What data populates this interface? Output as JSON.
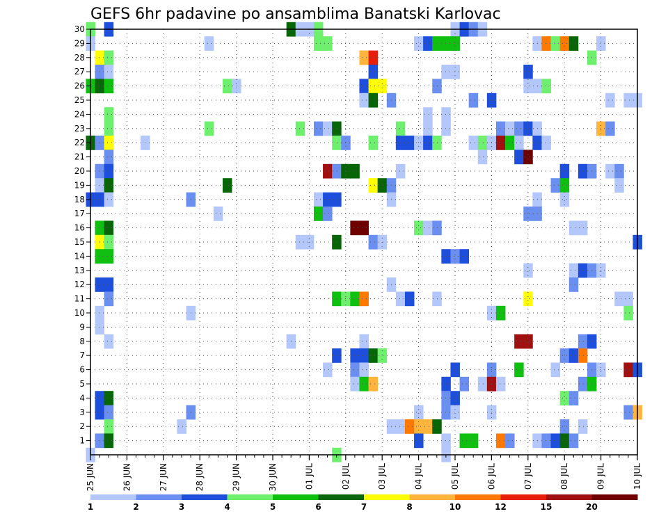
{
  "chart_data": {
    "type": "heatmap",
    "title": "GEFS 6hr padavine po ansamblima Banatski Karlovac",
    "x_tick_labels": [
      "25 JUN",
      "26 JUN",
      "27 JUN",
      "28 JUN",
      "29 JUN",
      "30 JUN",
      "01 JUL",
      "02 JUL",
      "03 JUL",
      "04 JUL",
      "05 JUL",
      "06 JUL",
      "07 JUL",
      "08 JUL",
      "09 JUL",
      "10 JUL"
    ],
    "y_tick_labels": [
      "1",
      "2",
      "3",
      "4",
      "5",
      "6",
      "7",
      "8",
      "9",
      "10",
      "11",
      "12",
      "13",
      "14",
      "15",
      "16",
      "17",
      "18",
      "19",
      "20",
      "21",
      "22",
      "23",
      "24",
      "25",
      "26",
      "27",
      "28",
      "29",
      "30"
    ],
    "x_steps_per_day": 4,
    "x_range_steps": [
      0,
      60
    ],
    "y_range_members": [
      0,
      30
    ],
    "grid": "dotted",
    "colorbar": {
      "placement": "bottom",
      "labels": [
        "1",
        "2",
        "3",
        "4",
        "5",
        "6",
        "7",
        "8",
        "10",
        "12",
        "15",
        "20"
      ],
      "colors": [
        "#b4c7fa",
        "#6b8ff0",
        "#1e4fdc",
        "#6ef06e",
        "#10c010",
        "#086608",
        "#ffff00",
        "#ffb43c",
        "#ff7800",
        "#e61e0a",
        "#a01010",
        "#6e0000"
      ]
    },
    "cells": [
      [
        30,
        0,
        4
      ],
      [
        30,
        2,
        3
      ],
      [
        30,
        22,
        6
      ],
      [
        30,
        23,
        1
      ],
      [
        30,
        24,
        1
      ],
      [
        30,
        25,
        4
      ],
      [
        30,
        40,
        1
      ],
      [
        30,
        41,
        3
      ],
      [
        30,
        42,
        2
      ],
      [
        30,
        43,
        1
      ],
      [
        29,
        0,
        1
      ],
      [
        29,
        13,
        1
      ],
      [
        29,
        25,
        4
      ],
      [
        29,
        26,
        4
      ],
      [
        29,
        36,
        1
      ],
      [
        29,
        37,
        3
      ],
      [
        29,
        38,
        5
      ],
      [
        29,
        39,
        5
      ],
      [
        29,
        40,
        5
      ],
      [
        29,
        49,
        1
      ],
      [
        29,
        50,
        9
      ],
      [
        29,
        51,
        4
      ],
      [
        29,
        52,
        9
      ],
      [
        29,
        53,
        6
      ],
      [
        29,
        56,
        1
      ],
      [
        28,
        1,
        7
      ],
      [
        28,
        2,
        4
      ],
      [
        28,
        30,
        8
      ],
      [
        28,
        31,
        10
      ],
      [
        28,
        55,
        4
      ],
      [
        27,
        1,
        2
      ],
      [
        27,
        2,
        1
      ],
      [
        27,
        31,
        3
      ],
      [
        27,
        39,
        1
      ],
      [
        27,
        40,
        1
      ],
      [
        27,
        48,
        3
      ],
      [
        26,
        0,
        5
      ],
      [
        26,
        1,
        6
      ],
      [
        26,
        2,
        5
      ],
      [
        26,
        15,
        4
      ],
      [
        26,
        16,
        1
      ],
      [
        26,
        30,
        3
      ],
      [
        26,
        31,
        7
      ],
      [
        26,
        32,
        7
      ],
      [
        26,
        38,
        2
      ],
      [
        26,
        48,
        1
      ],
      [
        26,
        49,
        1
      ],
      [
        26,
        50,
        4
      ],
      [
        25,
        30,
        1
      ],
      [
        25,
        31,
        6
      ],
      [
        25,
        33,
        2
      ],
      [
        25,
        42,
        2
      ],
      [
        25,
        44,
        3
      ],
      [
        25,
        57,
        1
      ],
      [
        25,
        59,
        1
      ],
      [
        25,
        60,
        1
      ],
      [
        24,
        2,
        4
      ],
      [
        24,
        37,
        1
      ],
      [
        24,
        39,
        1
      ],
      [
        23,
        2,
        4
      ],
      [
        23,
        13,
        4
      ],
      [
        23,
        23,
        4
      ],
      [
        23,
        25,
        2
      ],
      [
        23,
        26,
        1
      ],
      [
        23,
        27,
        6
      ],
      [
        23,
        34,
        4
      ],
      [
        23,
        37,
        1
      ],
      [
        23,
        39,
        1
      ],
      [
        23,
        45,
        2
      ],
      [
        23,
        46,
        1
      ],
      [
        23,
        47,
        2
      ],
      [
        23,
        48,
        3
      ],
      [
        23,
        49,
        1
      ],
      [
        23,
        56,
        8
      ],
      [
        23,
        57,
        2
      ],
      [
        22,
        0,
        6
      ],
      [
        22,
        1,
        2
      ],
      [
        22,
        2,
        7
      ],
      [
        22,
        6,
        1
      ],
      [
        22,
        27,
        4
      ],
      [
        22,
        28,
        2
      ],
      [
        22,
        31,
        4
      ],
      [
        22,
        34,
        3
      ],
      [
        22,
        35,
        3
      ],
      [
        22,
        36,
        1
      ],
      [
        22,
        37,
        3
      ],
      [
        22,
        38,
        4
      ],
      [
        22,
        42,
        1
      ],
      [
        22,
        43,
        4
      ],
      [
        22,
        44,
        1
      ],
      [
        22,
        45,
        11
      ],
      [
        22,
        46,
        5
      ],
      [
        22,
        47,
        1
      ],
      [
        22,
        49,
        3
      ],
      [
        22,
        50,
        1
      ],
      [
        21,
        2,
        2
      ],
      [
        21,
        43,
        1
      ],
      [
        21,
        47,
        3
      ],
      [
        21,
        48,
        12
      ],
      [
        20,
        1,
        2
      ],
      [
        20,
        2,
        3
      ],
      [
        20,
        26,
        11
      ],
      [
        20,
        27,
        2
      ],
      [
        20,
        28,
        6
      ],
      [
        20,
        29,
        6
      ],
      [
        20,
        34,
        1
      ],
      [
        20,
        52,
        3
      ],
      [
        20,
        54,
        3
      ],
      [
        20,
        55,
        2
      ],
      [
        20,
        57,
        1
      ],
      [
        20,
        58,
        2
      ],
      [
        19,
        1,
        1
      ],
      [
        19,
        2,
        6
      ],
      [
        19,
        15,
        6
      ],
      [
        19,
        31,
        7
      ],
      [
        19,
        32,
        6
      ],
      [
        19,
        33,
        2
      ],
      [
        19,
        51,
        2
      ],
      [
        19,
        52,
        5
      ],
      [
        19,
        58,
        1
      ],
      [
        18,
        0,
        3
      ],
      [
        18,
        1,
        3
      ],
      [
        18,
        2,
        1
      ],
      [
        18,
        11,
        2
      ],
      [
        18,
        25,
        1
      ],
      [
        18,
        26,
        3
      ],
      [
        18,
        27,
        3
      ],
      [
        18,
        33,
        1
      ],
      [
        18,
        49,
        1
      ],
      [
        18,
        52,
        1
      ],
      [
        17,
        14,
        1
      ],
      [
        17,
        25,
        5
      ],
      [
        17,
        26,
        2
      ],
      [
        17,
        48,
        2
      ],
      [
        17,
        49,
        2
      ],
      [
        16,
        1,
        5
      ],
      [
        16,
        2,
        6
      ],
      [
        16,
        29,
        12
      ],
      [
        16,
        30,
        12
      ],
      [
        16,
        36,
        4
      ],
      [
        16,
        37,
        1
      ],
      [
        16,
        38,
        2
      ],
      [
        16,
        53,
        1
      ],
      [
        16,
        54,
        1
      ],
      [
        15,
        1,
        7
      ],
      [
        15,
        2,
        4
      ],
      [
        15,
        23,
        1
      ],
      [
        15,
        24,
        1
      ],
      [
        15,
        27,
        6
      ],
      [
        15,
        31,
        2
      ],
      [
        15,
        32,
        1
      ],
      [
        15,
        60,
        3
      ],
      [
        14,
        1,
        5
      ],
      [
        14,
        2,
        5
      ],
      [
        14,
        39,
        3
      ],
      [
        14,
        40,
        2
      ],
      [
        14,
        41,
        3
      ],
      [
        13,
        48,
        1
      ],
      [
        13,
        53,
        1
      ],
      [
        13,
        54,
        3
      ],
      [
        13,
        55,
        2
      ],
      [
        13,
        56,
        1
      ],
      [
        12,
        1,
        3
      ],
      [
        12,
        2,
        3
      ],
      [
        12,
        33,
        1
      ],
      [
        12,
        53,
        2
      ],
      [
        11,
        2,
        2
      ],
      [
        11,
        27,
        5
      ],
      [
        11,
        28,
        4
      ],
      [
        11,
        29,
        5
      ],
      [
        11,
        30,
        9
      ],
      [
        11,
        34,
        1
      ],
      [
        11,
        35,
        3
      ],
      [
        11,
        38,
        1
      ],
      [
        11,
        48,
        7
      ],
      [
        11,
        58,
        1
      ],
      [
        11,
        59,
        1
      ],
      [
        10,
        1,
        1
      ],
      [
        10,
        11,
        1
      ],
      [
        10,
        44,
        1
      ],
      [
        10,
        45,
        5
      ],
      [
        10,
        59,
        4
      ],
      [
        9,
        1,
        1
      ],
      [
        8,
        2,
        1
      ],
      [
        8,
        22,
        1
      ],
      [
        8,
        30,
        1
      ],
      [
        8,
        47,
        11
      ],
      [
        8,
        48,
        11
      ],
      [
        8,
        54,
        2
      ],
      [
        8,
        55,
        3
      ],
      [
        7,
        27,
        3
      ],
      [
        7,
        29,
        3
      ],
      [
        7,
        30,
        3
      ],
      [
        7,
        31,
        6
      ],
      [
        7,
        32,
        4
      ],
      [
        7,
        52,
        2
      ],
      [
        7,
        53,
        3
      ],
      [
        7,
        54,
        9
      ],
      [
        6,
        26,
        1
      ],
      [
        6,
        29,
        2
      ],
      [
        6,
        30,
        1
      ],
      [
        6,
        40,
        3
      ],
      [
        6,
        44,
        2
      ],
      [
        6,
        47,
        5
      ],
      [
        6,
        51,
        1
      ],
      [
        6,
        55,
        2
      ],
      [
        6,
        56,
        1
      ],
      [
        6,
        59,
        11
      ],
      [
        6,
        60,
        3
      ],
      [
        5,
        29,
        1
      ],
      [
        5,
        30,
        5
      ],
      [
        5,
        31,
        8
      ],
      [
        5,
        39,
        3
      ],
      [
        5,
        41,
        2
      ],
      [
        5,
        43,
        1
      ],
      [
        5,
        44,
        11
      ],
      [
        5,
        45,
        1
      ],
      [
        5,
        54,
        2
      ],
      [
        5,
        55,
        5
      ],
      [
        4,
        1,
        3
      ],
      [
        4,
        2,
        6
      ],
      [
        4,
        39,
        2
      ],
      [
        4,
        40,
        3
      ],
      [
        4,
        52,
        4
      ],
      [
        4,
        53,
        2
      ],
      [
        3,
        1,
        3
      ],
      [
        3,
        2,
        2
      ],
      [
        3,
        11,
        2
      ],
      [
        3,
        36,
        1
      ],
      [
        3,
        39,
        2
      ],
      [
        3,
        40,
        1
      ],
      [
        3,
        44,
        1
      ],
      [
        3,
        59,
        2
      ],
      [
        3,
        60,
        8
      ],
      [
        2,
        2,
        4
      ],
      [
        2,
        10,
        1
      ],
      [
        2,
        33,
        1
      ],
      [
        2,
        34,
        1
      ],
      [
        2,
        35,
        9
      ],
      [
        2,
        36,
        8
      ],
      [
        2,
        37,
        8
      ],
      [
        2,
        38,
        6
      ],
      [
        2,
        52,
        2
      ],
      [
        2,
        54,
        1
      ],
      [
        1,
        1,
        2
      ],
      [
        1,
        2,
        6
      ],
      [
        1,
        36,
        3
      ],
      [
        1,
        39,
        1
      ],
      [
        1,
        41,
        5
      ],
      [
        1,
        42,
        5
      ],
      [
        1,
        45,
        9
      ],
      [
        1,
        46,
        2
      ],
      [
        1,
        49,
        1
      ],
      [
        1,
        50,
        2
      ],
      [
        1,
        51,
        3
      ],
      [
        1,
        52,
        6
      ],
      [
        1,
        53,
        2
      ],
      [
        0,
        0,
        1
      ],
      [
        0,
        27,
        4
      ],
      [
        0,
        39,
        1
      ]
    ]
  }
}
